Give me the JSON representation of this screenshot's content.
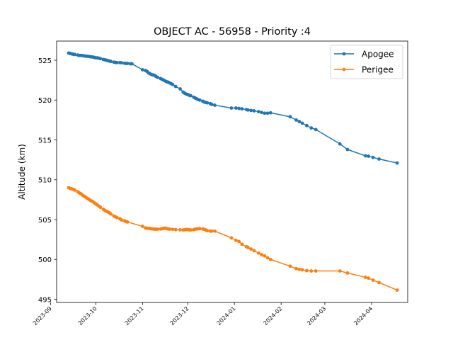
{
  "chart_data": {
    "type": "line",
    "title": "OBJECT AC - 56958 - Priority :4",
    "xlabel": "",
    "ylabel": "Altitude (km)",
    "x_type": "date",
    "xlim": [
      "2023-09-05",
      "2024-04-25"
    ],
    "ylim": [
      494.6,
      527.4
    ],
    "xticks": [
      "2023-09",
      "2023-10",
      "2023-11",
      "2023-12",
      "2024-01",
      "2024-02",
      "2024-03",
      "2024-04"
    ],
    "yticks": [
      495,
      500,
      505,
      510,
      515,
      520,
      525
    ],
    "legend_position": "top-right",
    "grid": false,
    "series": [
      {
        "name": "Apogee",
        "color": "#1f77b4",
        "marker": "circle",
        "points": [
          [
            "2023-09-13",
            525.9
          ],
          [
            "2023-09-14",
            525.85
          ],
          [
            "2023-09-15",
            525.8
          ],
          [
            "2023-09-16",
            525.75
          ],
          [
            "2023-09-17",
            525.72
          ],
          [
            "2023-09-19",
            525.65
          ],
          [
            "2023-09-20",
            525.6
          ],
          [
            "2023-09-21",
            525.6
          ],
          [
            "2023-09-22",
            525.58
          ],
          [
            "2023-09-23",
            525.55
          ],
          [
            "2023-09-24",
            525.52
          ],
          [
            "2023-09-25",
            525.5
          ],
          [
            "2023-09-26",
            525.48
          ],
          [
            "2023-09-27",
            525.45
          ],
          [
            "2023-09-28",
            525.42
          ],
          [
            "2023-09-29",
            525.4
          ],
          [
            "2023-09-30",
            525.35
          ],
          [
            "2023-10-01",
            525.3
          ],
          [
            "2023-10-02",
            525.3
          ],
          [
            "2023-10-03",
            525.25
          ],
          [
            "2023-10-04",
            525.2
          ],
          [
            "2023-10-06",
            525.1
          ],
          [
            "2023-10-07",
            525.05
          ],
          [
            "2023-10-08",
            525.0
          ],
          [
            "2023-10-09",
            524.95
          ],
          [
            "2023-10-10",
            524.9
          ],
          [
            "2023-10-11",
            524.85
          ],
          [
            "2023-10-13",
            524.75
          ],
          [
            "2023-10-14",
            524.72
          ],
          [
            "2023-10-15",
            524.7
          ],
          [
            "2023-10-17",
            524.7
          ],
          [
            "2023-10-18",
            524.68
          ],
          [
            "2023-10-20",
            524.62
          ],
          [
            "2023-10-21",
            524.6
          ],
          [
            "2023-10-22",
            524.6
          ],
          [
            "2023-10-24",
            524.55
          ],
          [
            "2023-10-25",
            524.55
          ],
          [
            "2023-11-01",
            523.8
          ],
          [
            "2023-11-03",
            523.7
          ],
          [
            "2023-11-04",
            523.6
          ],
          [
            "2023-11-05",
            523.4
          ],
          [
            "2023-11-06",
            523.3
          ],
          [
            "2023-11-07",
            523.2
          ],
          [
            "2023-11-08",
            523.15
          ],
          [
            "2023-11-09",
            523.1
          ],
          [
            "2023-11-10",
            522.95
          ],
          [
            "2023-11-11",
            522.85
          ],
          [
            "2023-11-13",
            522.7
          ],
          [
            "2023-11-14",
            522.6
          ],
          [
            "2023-11-15",
            522.5
          ],
          [
            "2023-11-16",
            522.4
          ],
          [
            "2023-11-17",
            522.3
          ],
          [
            "2023-11-18",
            522.25
          ],
          [
            "2023-11-19",
            522.15
          ],
          [
            "2023-11-20",
            522.05
          ],
          [
            "2023-11-21",
            521.95
          ],
          [
            "2023-11-23",
            521.7
          ],
          [
            "2023-11-26",
            521.4
          ],
          [
            "2023-11-28",
            521.0
          ],
          [
            "2023-11-29",
            520.85
          ],
          [
            "2023-11-30",
            520.75
          ],
          [
            "2023-12-01",
            520.7
          ],
          [
            "2023-12-02",
            520.6
          ],
          [
            "2023-12-03",
            520.55
          ],
          [
            "2023-12-05",
            520.35
          ],
          [
            "2023-12-06",
            520.25
          ],
          [
            "2023-12-07",
            520.15
          ],
          [
            "2023-12-08",
            520.05
          ],
          [
            "2023-12-09",
            520.0
          ],
          [
            "2023-12-11",
            519.85
          ],
          [
            "2023-12-12",
            519.75
          ],
          [
            "2023-12-13",
            519.7
          ],
          [
            "2023-12-14",
            519.65
          ],
          [
            "2023-12-16",
            519.55
          ],
          [
            "2023-12-17",
            519.45
          ],
          [
            "2023-12-19",
            519.35
          ],
          [
            "2023-12-30",
            519.0
          ],
          [
            "2024-01-02",
            519.0
          ],
          [
            "2024-01-04",
            518.95
          ],
          [
            "2024-01-06",
            518.9
          ],
          [
            "2024-01-09",
            518.8
          ],
          [
            "2024-01-10",
            518.75
          ],
          [
            "2024-01-12",
            518.7
          ],
          [
            "2024-01-14",
            518.65
          ],
          [
            "2024-01-17",
            518.55
          ],
          [
            "2024-01-19",
            518.45
          ],
          [
            "2024-01-21",
            518.35
          ],
          [
            "2024-01-23",
            518.35
          ],
          [
            "2024-01-25",
            518.4
          ],
          [
            "2024-02-07",
            517.9
          ],
          [
            "2024-02-11",
            517.5
          ],
          [
            "2024-02-13",
            517.3
          ],
          [
            "2024-02-15",
            517.1
          ],
          [
            "2024-02-18",
            516.8
          ],
          [
            "2024-02-21",
            516.5
          ],
          [
            "2024-02-24",
            516.3
          ],
          [
            "2024-03-11",
            514.5
          ],
          [
            "2024-03-16",
            513.8
          ],
          [
            "2024-03-28",
            513.0
          ],
          [
            "2024-03-30",
            512.95
          ],
          [
            "2024-04-02",
            512.8
          ],
          [
            "2024-04-06",
            512.6
          ],
          [
            "2024-04-18",
            512.1
          ]
        ]
      },
      {
        "name": "Perigee",
        "color": "#ff7f0e",
        "marker": "circle",
        "points": [
          [
            "2023-09-13",
            509.0
          ],
          [
            "2023-09-14",
            508.9
          ],
          [
            "2023-09-15",
            508.85
          ],
          [
            "2023-09-16",
            508.8
          ],
          [
            "2023-09-17",
            508.7
          ],
          [
            "2023-09-19",
            508.5
          ],
          [
            "2023-09-20",
            508.35
          ],
          [
            "2023-09-21",
            508.25
          ],
          [
            "2023-09-22",
            508.1
          ],
          [
            "2023-09-23",
            507.95
          ],
          [
            "2023-09-24",
            507.85
          ],
          [
            "2023-09-25",
            507.7
          ],
          [
            "2023-09-26",
            507.6
          ],
          [
            "2023-09-27",
            507.45
          ],
          [
            "2023-09-28",
            507.35
          ],
          [
            "2023-09-29",
            507.25
          ],
          [
            "2023-09-30",
            507.1
          ],
          [
            "2023-10-01",
            506.95
          ],
          [
            "2023-10-02",
            506.85
          ],
          [
            "2023-10-03",
            506.7
          ],
          [
            "2023-10-04",
            506.55
          ],
          [
            "2023-10-06",
            506.3
          ],
          [
            "2023-10-07",
            506.15
          ],
          [
            "2023-10-08",
            506.05
          ],
          [
            "2023-10-09",
            505.95
          ],
          [
            "2023-10-10",
            505.85
          ],
          [
            "2023-10-11",
            505.7
          ],
          [
            "2023-10-13",
            505.45
          ],
          [
            "2023-10-14",
            505.35
          ],
          [
            "2023-10-15",
            505.25
          ],
          [
            "2023-10-17",
            505.1
          ],
          [
            "2023-10-18",
            504.95
          ],
          [
            "2023-10-20",
            504.85
          ],
          [
            "2023-10-21",
            504.75
          ],
          [
            "2023-10-22",
            504.7
          ],
          [
            "2023-11-01",
            504.15
          ],
          [
            "2023-11-03",
            503.95
          ],
          [
            "2023-11-04",
            503.9
          ],
          [
            "2023-11-05",
            503.9
          ],
          [
            "2023-11-06",
            503.88
          ],
          [
            "2023-11-07",
            503.85
          ],
          [
            "2023-11-08",
            503.82
          ],
          [
            "2023-11-09",
            503.8
          ],
          [
            "2023-11-10",
            503.8
          ],
          [
            "2023-11-11",
            503.8
          ],
          [
            "2023-11-13",
            503.82
          ],
          [
            "2023-11-14",
            503.85
          ],
          [
            "2023-11-15",
            503.9
          ],
          [
            "2023-11-16",
            503.92
          ],
          [
            "2023-11-17",
            503.88
          ],
          [
            "2023-11-18",
            503.82
          ],
          [
            "2023-11-19",
            503.8
          ],
          [
            "2023-11-21",
            503.78
          ],
          [
            "2023-11-23",
            503.75
          ],
          [
            "2023-11-26",
            503.72
          ],
          [
            "2023-11-28",
            503.7
          ],
          [
            "2023-11-29",
            503.72
          ],
          [
            "2023-11-30",
            503.75
          ],
          [
            "2023-12-01",
            503.75
          ],
          [
            "2023-12-02",
            503.72
          ],
          [
            "2023-12-03",
            503.7
          ],
          [
            "2023-12-05",
            503.75
          ],
          [
            "2023-12-06",
            503.8
          ],
          [
            "2023-12-07",
            503.82
          ],
          [
            "2023-12-08",
            503.85
          ],
          [
            "2023-12-09",
            503.85
          ],
          [
            "2023-12-11",
            503.82
          ],
          [
            "2023-12-12",
            503.78
          ],
          [
            "2023-12-13",
            503.7
          ],
          [
            "2023-12-14",
            503.6
          ],
          [
            "2023-12-16",
            503.55
          ],
          [
            "2023-12-17",
            503.55
          ],
          [
            "2023-12-19",
            503.55
          ],
          [
            "2023-12-30",
            502.7
          ],
          [
            "2024-01-02",
            502.4
          ],
          [
            "2024-01-04",
            502.25
          ],
          [
            "2024-01-06",
            501.9
          ],
          [
            "2024-01-09",
            501.6
          ],
          [
            "2024-01-10",
            501.5
          ],
          [
            "2024-01-12",
            501.3
          ],
          [
            "2024-01-14",
            501.1
          ],
          [
            "2024-01-17",
            500.8
          ],
          [
            "2024-01-19",
            500.6
          ],
          [
            "2024-01-21",
            500.45
          ],
          [
            "2024-01-23",
            500.2
          ],
          [
            "2024-01-25",
            500.0
          ],
          [
            "2024-02-07",
            499.15
          ],
          [
            "2024-02-11",
            498.85
          ],
          [
            "2024-02-13",
            498.75
          ],
          [
            "2024-02-15",
            498.7
          ],
          [
            "2024-02-18",
            498.6
          ],
          [
            "2024-02-21",
            498.55
          ],
          [
            "2024-02-24",
            498.55
          ],
          [
            "2024-03-11",
            498.55
          ],
          [
            "2024-03-16",
            498.3
          ],
          [
            "2024-03-28",
            497.75
          ],
          [
            "2024-03-30",
            497.65
          ],
          [
            "2024-04-02",
            497.4
          ],
          [
            "2024-04-06",
            497.1
          ],
          [
            "2024-04-18",
            496.15
          ]
        ]
      }
    ]
  }
}
